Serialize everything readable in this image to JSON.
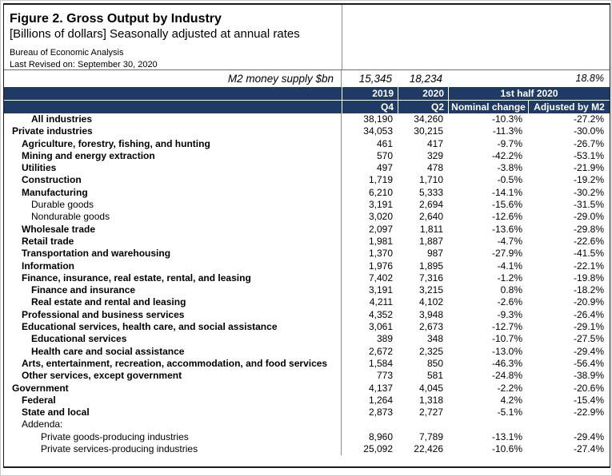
{
  "doc": {
    "title": "Figure 2. Gross Output by Industry",
    "subtitle": "[Billions of dollars] Seasonally adjusted at annual rates",
    "source": "Bureau of Economic Analysis",
    "revised": "Last Revised on: September 30, 2020"
  },
  "m2_row": {
    "label": "M2 money supply $bn",
    "q4_2019": "15,345",
    "q2_2020": "18,234",
    "growth": "18.8%"
  },
  "columns": {
    "year1": "2019",
    "year2": "2020",
    "half": "1st half 2020",
    "q4": "Q4",
    "q2": "Q2",
    "nominal": "Nominal change",
    "adjusted": "Adjusted by M2"
  },
  "colors": {
    "header_bg": "#1f3a64",
    "header_text": "#ffffff"
  },
  "table_rows": [
    {
      "label": "All industries",
      "indent": 2,
      "bold": true,
      "q4": "38,190",
      "q2": "34,260",
      "nominal": "-10.3%",
      "adjusted": "-27.2%"
    },
    {
      "label": "Private industries",
      "indent": 0,
      "bold": true,
      "q4": "34,053",
      "q2": "30,215",
      "nominal": "-11.3%",
      "adjusted": "-30.0%"
    },
    {
      "label": "Agriculture, forestry, fishing, and hunting",
      "indent": 1,
      "bold": true,
      "q4": "461",
      "q2": "417",
      "nominal": "-9.7%",
      "adjusted": "-26.7%"
    },
    {
      "label": "Mining and energy extraction",
      "indent": 1,
      "bold": true,
      "q4": "570",
      "q2": "329",
      "nominal": "-42.2%",
      "adjusted": "-53.1%"
    },
    {
      "label": "Utilities",
      "indent": 1,
      "bold": true,
      "q4": "497",
      "q2": "478",
      "nominal": "-3.8%",
      "adjusted": "-21.9%"
    },
    {
      "label": "Construction",
      "indent": 1,
      "bold": true,
      "q4": "1,719",
      "q2": "1,710",
      "nominal": "-0.5%",
      "adjusted": "-19.2%"
    },
    {
      "label": "Manufacturing",
      "indent": 1,
      "bold": true,
      "q4": "6,210",
      "q2": "5,333",
      "nominal": "-14.1%",
      "adjusted": "-30.2%"
    },
    {
      "label": "Durable goods",
      "indent": 2,
      "bold": false,
      "q4": "3,191",
      "q2": "2,694",
      "nominal": "-15.6%",
      "adjusted": "-31.5%"
    },
    {
      "label": "Nondurable goods",
      "indent": 2,
      "bold": false,
      "q4": "3,020",
      "q2": "2,640",
      "nominal": "-12.6%",
      "adjusted": "-29.0%"
    },
    {
      "label": "Wholesale trade",
      "indent": 1,
      "bold": true,
      "q4": "2,097",
      "q2": "1,811",
      "nominal": "-13.6%",
      "adjusted": "-29.8%"
    },
    {
      "label": "Retail trade",
      "indent": 1,
      "bold": true,
      "q4": "1,981",
      "q2": "1,887",
      "nominal": "-4.7%",
      "adjusted": "-22.6%"
    },
    {
      "label": "Transportation and warehousing",
      "indent": 1,
      "bold": true,
      "q4": "1,370",
      "q2": "987",
      "nominal": "-27.9%",
      "adjusted": "-41.5%"
    },
    {
      "label": "Information",
      "indent": 1,
      "bold": true,
      "q4": "1,976",
      "q2": "1,895",
      "nominal": "-4.1%",
      "adjusted": "-22.1%"
    },
    {
      "label": "Finance, insurance, real estate, rental, and leasing",
      "indent": 1,
      "bold": true,
      "q4": "7,402",
      "q2": "7,316",
      "nominal": "-1.2%",
      "adjusted": "-19.8%"
    },
    {
      "label": "Finance and insurance",
      "indent": 2,
      "bold": true,
      "q4": "3,191",
      "q2": "3,215",
      "nominal": "0.8%",
      "adjusted": "-18.2%"
    },
    {
      "label": "Real estate and rental and leasing",
      "indent": 2,
      "bold": true,
      "q4": "4,211",
      "q2": "4,102",
      "nominal": "-2.6%",
      "adjusted": "-20.9%"
    },
    {
      "label": "Professional and business services",
      "indent": 1,
      "bold": true,
      "q4": "4,352",
      "q2": "3,948",
      "nominal": "-9.3%",
      "adjusted": "-26.4%"
    },
    {
      "label": "Educational services, health care, and social assistance",
      "indent": 1,
      "bold": true,
      "q4": "3,061",
      "q2": "2,673",
      "nominal": "-12.7%",
      "adjusted": "-29.1%"
    },
    {
      "label": "Educational services",
      "indent": 2,
      "bold": true,
      "q4": "389",
      "q2": "348",
      "nominal": "-10.7%",
      "adjusted": "-27.5%"
    },
    {
      "label": "Health care and social assistance",
      "indent": 2,
      "bold": true,
      "q4": "2,672",
      "q2": "2,325",
      "nominal": "-13.0%",
      "adjusted": "-29.4%"
    },
    {
      "label": "Arts, entertainment, recreation, accommodation, and food services",
      "indent": 1,
      "bold": true,
      "q4": "1,584",
      "q2": "850",
      "nominal": "-46.3%",
      "adjusted": "-56.4%"
    },
    {
      "label": "Other services, except government",
      "indent": 1,
      "bold": true,
      "q4": "773",
      "q2": "581",
      "nominal": "-24.8%",
      "adjusted": "-38.9%"
    },
    {
      "label": "Government",
      "indent": 0,
      "bold": true,
      "q4": "4,137",
      "q2": "4,045",
      "nominal": "-2.2%",
      "adjusted": "-20.6%"
    },
    {
      "label": "Federal",
      "indent": 1,
      "bold": true,
      "q4": "1,264",
      "q2": "1,318",
      "nominal": "4.2%",
      "adjusted": "-15.4%"
    },
    {
      "label": "State and local",
      "indent": 1,
      "bold": true,
      "q4": "2,873",
      "q2": "2,727",
      "nominal": "-5.1%",
      "adjusted": "-22.9%"
    },
    {
      "label": "Addenda:",
      "indent": 1,
      "bold": false,
      "q4": "",
      "q2": "",
      "nominal": "",
      "adjusted": ""
    },
    {
      "label": "Private goods-producing industries",
      "indent": 3,
      "bold": false,
      "q4": "8,960",
      "q2": "7,789",
      "nominal": "-13.1%",
      "adjusted": "-29.4%"
    },
    {
      "label": "Private services-producing industries",
      "indent": 3,
      "bold": false,
      "q4": "25,092",
      "q2": "22,426",
      "nominal": "-10.6%",
      "adjusted": "-27.4%"
    }
  ]
}
